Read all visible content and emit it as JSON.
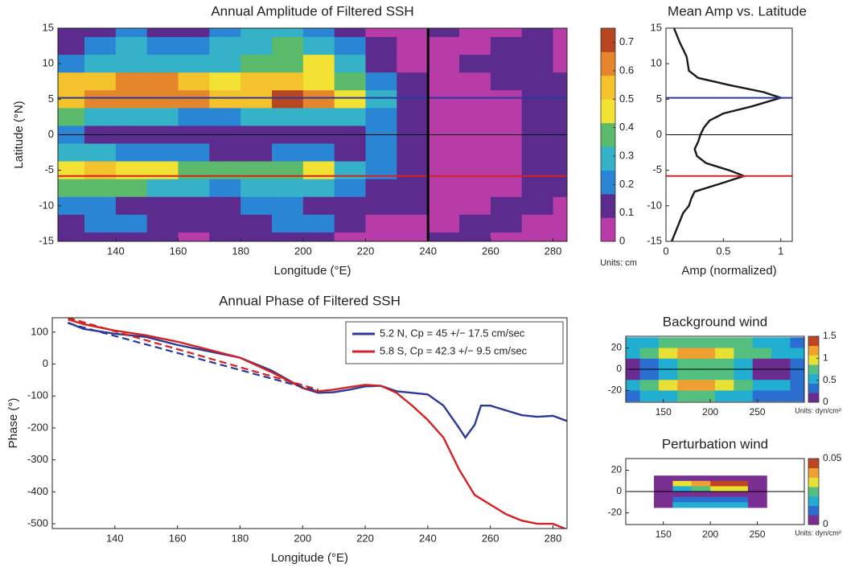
{
  "chart_data": [
    {
      "type": "heatmap",
      "title": "Annual Amplitude of Filtered SSH",
      "xlabel": "Longitude (°E)",
      "ylabel": "Latitude (°N)",
      "colorbar_unit": "Units: cm",
      "x": [
        125,
        135,
        145,
        155,
        165,
        175,
        185,
        195,
        205,
        215,
        225,
        235,
        245,
        255,
        265,
        275,
        285
      ],
      "y": [
        15,
        12.5,
        10,
        7.5,
        5,
        2.5,
        0,
        -2.5,
        -5,
        -7.5,
        -10,
        -12.5,
        -15
      ],
      "z": [
        [
          0.1,
          0.15,
          0.2,
          0.1,
          0.15,
          0.2,
          0.25,
          0.3,
          0.2,
          0.1,
          0.05,
          0.05,
          0.1,
          0.05,
          0.05,
          0.1,
          0.05
        ],
        [
          0.15,
          0.2,
          0.25,
          0.2,
          0.2,
          0.25,
          0.3,
          0.35,
          0.3,
          0.2,
          0.1,
          0.05,
          0.05,
          0.05,
          0.1,
          0.1,
          0.05
        ],
        [
          0.2,
          0.25,
          0.3,
          0.3,
          0.3,
          0.3,
          0.35,
          0.4,
          0.45,
          0.3,
          0.15,
          0.05,
          0.05,
          0.1,
          0.1,
          0.1,
          0.05
        ],
        [
          0.5,
          0.55,
          0.6,
          0.6,
          0.5,
          0.45,
          0.5,
          0.5,
          0.45,
          0.35,
          0.2,
          0.1,
          0.05,
          0.05,
          0.1,
          0.1,
          0.1
        ],
        [
          0.55,
          0.6,
          0.65,
          0.65,
          0.6,
          0.55,
          0.55,
          0.7,
          0.6,
          0.45,
          0.25,
          0.1,
          0.05,
          0.05,
          0.05,
          0.1,
          0.1
        ],
        [
          0.35,
          0.3,
          0.3,
          0.25,
          0.2,
          0.2,
          0.25,
          0.3,
          0.3,
          0.25,
          0.2,
          0.1,
          0.05,
          0.05,
          0.05,
          0.1,
          0.1
        ],
        [
          0.2,
          0.15,
          0.15,
          0.1,
          0.1,
          0.1,
          0.1,
          0.15,
          0.15,
          0.15,
          0.2,
          0.1,
          0.05,
          0.05,
          0.05,
          0.1,
          0.15
        ],
        [
          0.3,
          0.25,
          0.2,
          0.2,
          0.2,
          0.15,
          0.15,
          0.2,
          0.2,
          0.15,
          0.2,
          0.1,
          0.05,
          0.05,
          0.05,
          0.1,
          0.15
        ],
        [
          0.45,
          0.5,
          0.45,
          0.45,
          0.4,
          0.35,
          0.35,
          0.4,
          0.45,
          0.3,
          0.2,
          0.1,
          0.05,
          0.05,
          0.05,
          0.1,
          0.1
        ],
        [
          0.35,
          0.4,
          0.35,
          0.3,
          0.25,
          0.2,
          0.25,
          0.3,
          0.3,
          0.2,
          0.15,
          0.1,
          0.05,
          0.05,
          0.05,
          0.1,
          0.1
        ],
        [
          0.2,
          0.2,
          0.15,
          0.15,
          0.1,
          0.1,
          0.2,
          0.2,
          0.15,
          0.1,
          0.1,
          0.1,
          0.05,
          0.05,
          0.1,
          0.1,
          0.05
        ],
        [
          0.15,
          0.2,
          0.2,
          0.1,
          0.1,
          0.1,
          0.15,
          0.2,
          0.2,
          0.1,
          0.05,
          0.05,
          0.05,
          0.1,
          0.1,
          0.05,
          0.05
        ],
        [
          0.1,
          0.1,
          0.15,
          0.1,
          0.05,
          0.1,
          0.1,
          0.15,
          0.1,
          0.05,
          0.05,
          0.05,
          0.1,
          0.1,
          0.05,
          0.05,
          0.05
        ]
      ],
      "xlim": [
        121.5,
        284.5
      ],
      "xticks": [
        140,
        160,
        180,
        200,
        220,
        240,
        260,
        280
      ],
      "ylim": [
        -15,
        15
      ],
      "yticks": [
        -15,
        -10,
        -5,
        0,
        5,
        10,
        15
      ],
      "clim": [
        0,
        0.75
      ],
      "cticks": [
        0,
        0.1,
        0.2,
        0.3,
        0.4,
        0.5,
        0.6,
        0.7
      ],
      "colormap": [
        "#b73ca7",
        "#5b2c8e",
        "#2a86d4",
        "#35b2c8",
        "#5cba6c",
        "#f2e234",
        "#f3c22c",
        "#e6862c",
        "#b84522"
      ],
      "hlines": [
        {
          "value": 5.2,
          "color": "#2b3a98"
        },
        {
          "value": -5.8,
          "color": "#d42222"
        },
        {
          "value": 0,
          "color": "#000000"
        }
      ],
      "vlines": [
        {
          "value": 240,
          "color": "#000000"
        }
      ]
    },
    {
      "type": "line",
      "orientation": "horizontal",
      "title": "Mean Amp vs. Latitude",
      "xlabel": "Amp (normalized)",
      "xlim": [
        0,
        1.1
      ],
      "xticks": [
        0,
        0.5,
        1
      ],
      "ylim": [
        -15,
        15
      ],
      "yticks": [
        -15,
        -10,
        -5,
        0,
        5,
        10,
        15
      ],
      "series": [
        {
          "color": "#1a1a1a",
          "lat": [
            15,
            13,
            11,
            9,
            8,
            7,
            6,
            5.2,
            4,
            3,
            2,
            1,
            0,
            -1,
            -2,
            -3,
            -4,
            -5,
            -5.8,
            -7,
            -8,
            -9,
            -10,
            -11,
            -13,
            -15
          ],
          "values": [
            0.07,
            0.12,
            0.18,
            0.2,
            0.28,
            0.55,
            0.85,
            1.0,
            0.75,
            0.5,
            0.38,
            0.33,
            0.3,
            0.28,
            0.25,
            0.27,
            0.35,
            0.55,
            0.68,
            0.45,
            0.25,
            0.22,
            0.2,
            0.15,
            0.1,
            0.05
          ]
        }
      ],
      "hlines": [
        {
          "value": 5.2,
          "color": "#2b3a98"
        },
        {
          "value": -5.8,
          "color": "#d42222"
        },
        {
          "value": 0,
          "color": "#000000"
        }
      ]
    },
    {
      "type": "line",
      "title": "Annual Phase of Filtered SSH",
      "xlabel": "Longitude (°E)",
      "ylabel": "Phase (°)",
      "xlim": [
        120,
        284.5
      ],
      "xticks": [
        140,
        160,
        180,
        200,
        220,
        240,
        260,
        280
      ],
      "ylim": [
        -515,
        145
      ],
      "yticks": [
        -500,
        -400,
        -300,
        -200,
        -100,
        0,
        100
      ],
      "legend": "upper right",
      "series": [
        {
          "name": "5.2 N, Cp = 45 +/− 17.5 cm/sec",
          "color": "#2b3a98",
          "x": [
            125,
            130,
            140,
            150,
            160,
            170,
            180,
            190,
            200,
            205,
            210,
            215,
            220,
            225,
            230,
            235,
            240,
            245,
            250,
            252,
            255,
            257,
            260,
            265,
            270,
            275,
            280,
            285
          ],
          "values": [
            130,
            110,
            95,
            85,
            60,
            40,
            20,
            -20,
            -75,
            -90,
            -88,
            -80,
            -70,
            -68,
            -85,
            -90,
            -95,
            -130,
            -200,
            -230,
            -190,
            -130,
            -130,
            -145,
            -160,
            -165,
            -162,
            -180
          ]
        },
        {
          "name": "5.8 S, Cp = 42.3 +/− 9.5 cm/sec",
          "color": "#d42222",
          "x": [
            125,
            130,
            140,
            150,
            160,
            170,
            180,
            190,
            200,
            205,
            210,
            215,
            220,
            225,
            230,
            235,
            240,
            245,
            250,
            255,
            260,
            265,
            270,
            275,
            280,
            285
          ],
          "values": [
            140,
            125,
            105,
            90,
            70,
            45,
            20,
            -25,
            -75,
            -85,
            -80,
            -72,
            -65,
            -68,
            -90,
            -130,
            -175,
            -230,
            -330,
            -410,
            -440,
            -470,
            -490,
            -500,
            -500,
            -520
          ]
        },
        {
          "color": "#2b3a98",
          "dash": true,
          "x": [
            125,
            205
          ],
          "values": [
            128,
            -85
          ]
        },
        {
          "color": "#d42222",
          "dash": true,
          "x": [
            125,
            205
          ],
          "values": [
            145,
            -80
          ]
        }
      ]
    },
    {
      "type": "heatmap",
      "title": "Background wind",
      "colorbar_unit": "Units: dyn/cm²",
      "x": [
        115,
        135,
        155,
        175,
        195,
        215,
        235,
        255,
        275,
        295
      ],
      "y": [
        25,
        15,
        5,
        -5,
        -15,
        -25
      ],
      "z": [
        [
          0.5,
          0.6,
          0.7,
          0.8,
          0.8,
          0.8,
          0.7,
          0.6,
          0.5,
          0.4
        ],
        [
          0.6,
          0.8,
          1.0,
          1.2,
          1.2,
          1.0,
          0.8,
          0.7,
          0.6,
          0.5
        ],
        [
          0.1,
          0.3,
          0.6,
          0.8,
          0.8,
          0.7,
          0.5,
          0.2,
          0.1,
          0.3
        ],
        [
          0.1,
          0.3,
          0.6,
          0.8,
          0.8,
          0.7,
          0.5,
          0.2,
          0.1,
          0.3
        ],
        [
          0.5,
          0.7,
          0.9,
          1.1,
          1.1,
          0.9,
          0.8,
          0.6,
          0.5,
          0.4
        ],
        [
          0.4,
          0.5,
          0.6,
          0.7,
          0.7,
          0.6,
          0.5,
          0.4,
          0.4,
          0.3
        ]
      ],
      "xlim": [
        110,
        300
      ],
      "xticks": [
        150,
        200,
        250
      ],
      "ylim": [
        -31,
        31
      ],
      "yticks": [
        -20,
        0,
        20
      ],
      "clim": [
        0,
        1.5
      ],
      "cticks": [
        0,
        0.5,
        1,
        1.5
      ],
      "colormap": [
        "#6a2c8e",
        "#2a6fd0",
        "#22aed0",
        "#55bf80",
        "#e8e034",
        "#f0a030",
        "#c04522"
      ],
      "hlines": [
        {
          "value": 0,
          "color": "#000000"
        }
      ]
    },
    {
      "type": "heatmap",
      "title": "Perturbation wind",
      "colorbar_unit": "Units: dyn/cm²",
      "x": [
        150,
        170,
        190,
        210,
        230,
        250
      ],
      "y": [
        12.5,
        7.5,
        2.5,
        -2.5,
        -7.5,
        -12.5
      ],
      "z": [
        [
          0,
          0.005,
          0.005,
          0.005,
          0.005,
          0
        ],
        [
          0.005,
          0.035,
          0.04,
          0.045,
          0.045,
          0.005
        ],
        [
          0.005,
          0.02,
          0.025,
          0.03,
          0.03,
          0.005
        ],
        [
          0,
          0.005,
          0.005,
          0.005,
          0.005,
          0
        ],
        [
          0,
          0.01,
          0.01,
          0.01,
          0.01,
          0
        ],
        [
          0,
          0.015,
          0.015,
          0.015,
          0.015,
          0
        ]
      ],
      "xlim": [
        110,
        300
      ],
      "xticks": [
        150,
        200,
        250
      ],
      "ylim": [
        -31,
        31
      ],
      "yticks": [
        -20,
        0,
        20
      ],
      "clim": [
        0,
        0.05
      ],
      "cticks": [
        0,
        0.05
      ],
      "colormap": [
        "#7a2e92",
        "#2a6fd0",
        "#22aed0",
        "#55bf80",
        "#e8e034",
        "#f0a030",
        "#c04522"
      ],
      "hlines": [
        {
          "value": 0,
          "color": "#000000"
        }
      ]
    }
  ]
}
